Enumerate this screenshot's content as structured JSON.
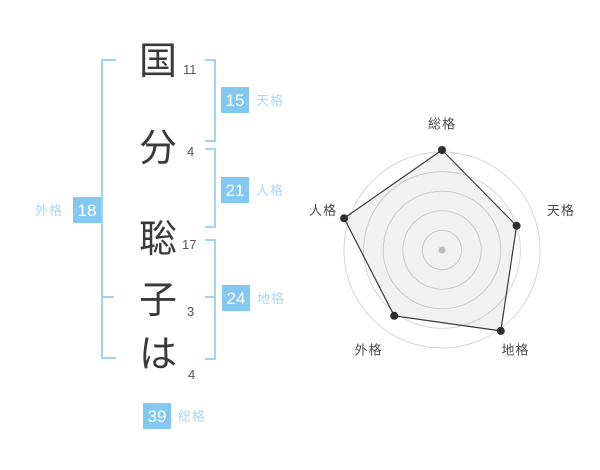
{
  "page": {
    "background": "#ffffff"
  },
  "name_diagram": {
    "characters": [
      {
        "char": "国",
        "strokes": "11"
      },
      {
        "char": "分",
        "strokes": "4"
      },
      {
        "char": "聡",
        "strokes": "17"
      },
      {
        "char": "子",
        "strokes": "3"
      },
      {
        "char": "は",
        "strokes": "4"
      }
    ],
    "kaku": {
      "tenkaku": {
        "value": "15",
        "label": "天格"
      },
      "jinkaku": {
        "value": "21",
        "label": "人格"
      },
      "chikaku": {
        "value": "24",
        "label": "地格"
      },
      "gaikaku": {
        "value": "18",
        "label": "外格"
      },
      "soukaku": {
        "value": "39",
        "label": "総格"
      }
    }
  },
  "colors": {
    "badge_blue": "#82c8f0",
    "kaku_label_blue": "#a8d8f4",
    "bracket_blue": "#9ed4f4",
    "text_dark": "#3a3a3a",
    "stroke_number_gray": "#555555",
    "ring_gray": "#d6d6d6",
    "polygon_line": "#3a3a3a",
    "center_dot_gray": "#bdbdbd",
    "axis_label_gray": "#4a4a4a"
  },
  "chart_data": {
    "type": "radar",
    "title": "",
    "axes": [
      "総格",
      "天格",
      "地格",
      "外格",
      "人格"
    ],
    "axis_keys": [
      "soukaku",
      "tenkaku",
      "chikaku",
      "gaikaku",
      "jinkaku"
    ],
    "axis_angles_deg": [
      -90,
      -18,
      54,
      126,
      198
    ],
    "values_fraction_of_max": [
      1.02,
      0.8,
      1.02,
      0.83,
      1.05
    ],
    "ring_fractions": [
      0.2,
      0.4,
      0.6,
      0.8,
      1.0
    ],
    "max_radius_px": 98,
    "grid": "concentric-circles",
    "legend": "none",
    "center_dot": true
  }
}
